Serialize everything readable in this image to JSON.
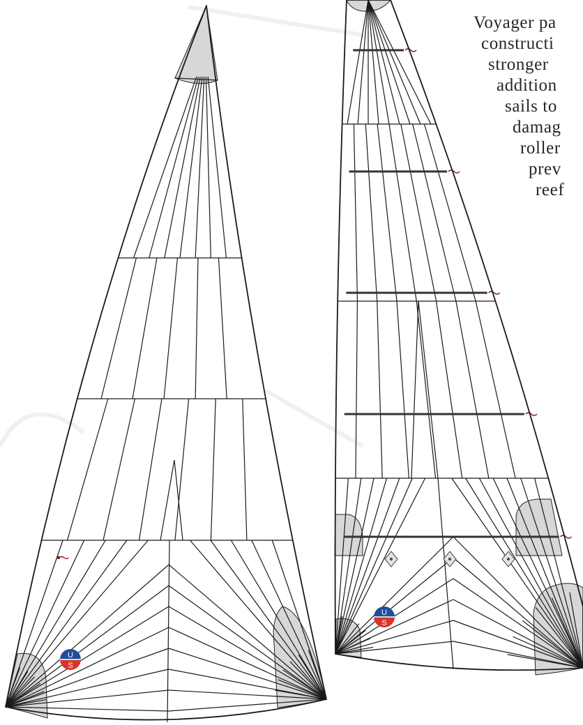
{
  "caption": {
    "lines": [
      "Voyager pa",
      "constructi",
      "stronger",
      "addition",
      "sails to",
      "damag",
      "roller",
      "prev",
      "reef"
    ]
  },
  "logo": {
    "top_letter": "U",
    "bottom_letter": "S"
  },
  "colors": {
    "seam": "#1a1a1a",
    "reinforcement_fill": "#d7d7d7",
    "reef_line": "#333333",
    "tell_tale": "#8b1a1a",
    "logo_blue": "#1d4f9c",
    "logo_red": "#d8342c",
    "caption_text": "#262626"
  },
  "sails": [
    {
      "name": "genoa",
      "logo": true
    },
    {
      "name": "voyager-sail",
      "logo": true,
      "reef_rows": 5
    }
  ]
}
